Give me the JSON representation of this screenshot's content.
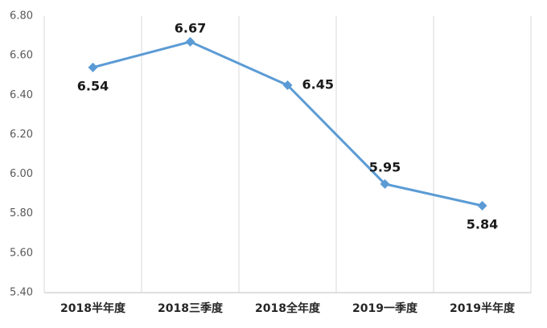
{
  "chart_data": {
    "type": "line",
    "categories": [
      "2018半年度",
      "2018三季度",
      "2018全年度",
      "2019一季度",
      "2019半年度"
    ],
    "series": [
      {
        "color": "#5b9bd5",
        "values": [
          6.54,
          6.67,
          6.45,
          5.95,
          5.84
        ]
      }
    ],
    "ylim": [
      5.4,
      6.8
    ],
    "yticks": [
      {
        "value": 5.4,
        "label": "5.40"
      },
      {
        "value": 5.6,
        "label": "5.60"
      },
      {
        "value": 5.8,
        "label": "5.80"
      },
      {
        "value": 6.0,
        "label": "6.00"
      },
      {
        "value": 6.2,
        "label": "6.20"
      },
      {
        "value": 6.4,
        "label": "6.40"
      },
      {
        "value": 6.6,
        "label": "6.60"
      },
      {
        "value": 6.8,
        "label": "6.80"
      }
    ],
    "data_labels": true
  }
}
